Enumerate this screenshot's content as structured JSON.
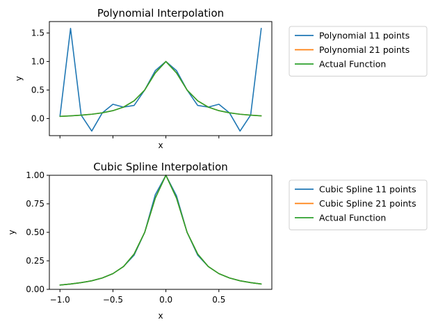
{
  "chart_data": [
    {
      "type": "line",
      "title": "Polynomial Interpolation",
      "xlabel": "x",
      "ylabel": "y",
      "xlim": [
        -1.1,
        1.0
      ],
      "ylim": [
        -0.3,
        1.7
      ],
      "yticks": [
        0.0,
        0.5,
        1.0,
        1.5
      ],
      "ytick_labels": [
        "0.0",
        "0.5",
        "1.0",
        "1.5"
      ],
      "xticks": [
        -1.0,
        -0.5,
        0.0,
        0.5
      ],
      "show_xtick_labels": false,
      "legend": "outside-right",
      "series": [
        {
          "name": "Polynomial 11 points",
          "color": "#1f77b4",
          "x": [
            -1.0,
            -0.9,
            -0.8,
            -0.7,
            -0.6,
            -0.5,
            -0.4,
            -0.3,
            -0.2,
            -0.1,
            0.0,
            0.1,
            0.2,
            0.3,
            0.4,
            0.5,
            0.6,
            0.7,
            0.8,
            0.9
          ],
          "y": [
            0.038,
            1.58,
            0.06,
            -0.22,
            0.1,
            0.25,
            0.2,
            0.23,
            0.5,
            0.84,
            1.0,
            0.84,
            0.5,
            0.23,
            0.2,
            0.25,
            0.1,
            -0.22,
            0.06,
            1.58
          ]
        },
        {
          "name": "Polynomial 21 points",
          "color": "#ff7f0e",
          "x": [
            -1.0,
            -0.9,
            -0.8,
            -0.7,
            -0.6,
            -0.5,
            -0.4,
            -0.3,
            -0.2,
            -0.1,
            0.0,
            0.1,
            0.2,
            0.3,
            0.4,
            0.5,
            0.6,
            0.7,
            0.8,
            0.9
          ],
          "y": [
            0.038,
            0.047,
            0.059,
            0.075,
            0.1,
            0.138,
            0.2,
            0.31,
            0.5,
            0.8,
            1.0,
            0.8,
            0.5,
            0.31,
            0.2,
            0.138,
            0.1,
            0.075,
            0.059,
            0.047
          ]
        },
        {
          "name": "Actual Function",
          "color": "#2ca02c",
          "x": [
            -1.0,
            -0.9,
            -0.8,
            -0.7,
            -0.6,
            -0.5,
            -0.4,
            -0.3,
            -0.2,
            -0.1,
            0.0,
            0.1,
            0.2,
            0.3,
            0.4,
            0.5,
            0.6,
            0.7,
            0.8,
            0.9
          ],
          "y": [
            0.038,
            0.047,
            0.059,
            0.075,
            0.1,
            0.138,
            0.2,
            0.31,
            0.5,
            0.8,
            1.0,
            0.8,
            0.5,
            0.31,
            0.2,
            0.138,
            0.1,
            0.075,
            0.059,
            0.047
          ]
        }
      ]
    },
    {
      "type": "line",
      "title": "Cubic Spline Interpolation",
      "xlabel": "x",
      "ylabel": "y",
      "xlim": [
        -1.1,
        1.0
      ],
      "ylim": [
        0.0,
        1.0
      ],
      "yticks": [
        0.0,
        0.25,
        0.5,
        0.75,
        1.0
      ],
      "ytick_labels": [
        "0.00",
        "0.25",
        "0.50",
        "0.75",
        "1.00"
      ],
      "xticks": [
        -1.0,
        -0.5,
        0.0,
        0.5
      ],
      "xtick_labels": [
        "−1.0",
        "−0.5",
        "0.0",
        "0.5"
      ],
      "show_xtick_labels": true,
      "legend": "outside-right",
      "series": [
        {
          "name": "Cubic Spline 11 points",
          "color": "#1f77b4",
          "x": [
            -1.0,
            -0.9,
            -0.8,
            -0.7,
            -0.6,
            -0.5,
            -0.4,
            -0.3,
            -0.2,
            -0.1,
            0.0,
            0.1,
            0.2,
            0.3,
            0.4,
            0.5,
            0.6,
            0.7,
            0.8,
            0.9
          ],
          "y": [
            0.038,
            0.047,
            0.059,
            0.075,
            0.1,
            0.138,
            0.2,
            0.3,
            0.5,
            0.83,
            1.0,
            0.82,
            0.5,
            0.3,
            0.2,
            0.138,
            0.1,
            0.075,
            0.059,
            0.047
          ]
        },
        {
          "name": "Cubic Spline 21 points",
          "color": "#ff7f0e",
          "x": [
            -1.0,
            -0.9,
            -0.8,
            -0.7,
            -0.6,
            -0.5,
            -0.4,
            -0.3,
            -0.2,
            -0.1,
            0.0,
            0.1,
            0.2,
            0.3,
            0.4,
            0.5,
            0.6,
            0.7,
            0.8,
            0.9
          ],
          "y": [
            0.038,
            0.047,
            0.059,
            0.075,
            0.1,
            0.138,
            0.2,
            0.31,
            0.5,
            0.8,
            1.0,
            0.8,
            0.5,
            0.31,
            0.2,
            0.138,
            0.1,
            0.075,
            0.059,
            0.047
          ]
        },
        {
          "name": "Actual Function",
          "color": "#2ca02c",
          "x": [
            -1.0,
            -0.9,
            -0.8,
            -0.7,
            -0.6,
            -0.5,
            -0.4,
            -0.3,
            -0.2,
            -0.1,
            0.0,
            0.1,
            0.2,
            0.3,
            0.4,
            0.5,
            0.6,
            0.7,
            0.8,
            0.9
          ],
          "y": [
            0.038,
            0.047,
            0.059,
            0.075,
            0.1,
            0.138,
            0.2,
            0.31,
            0.5,
            0.8,
            1.0,
            0.8,
            0.5,
            0.31,
            0.2,
            0.138,
            0.1,
            0.075,
            0.059,
            0.047
          ]
        }
      ]
    }
  ]
}
